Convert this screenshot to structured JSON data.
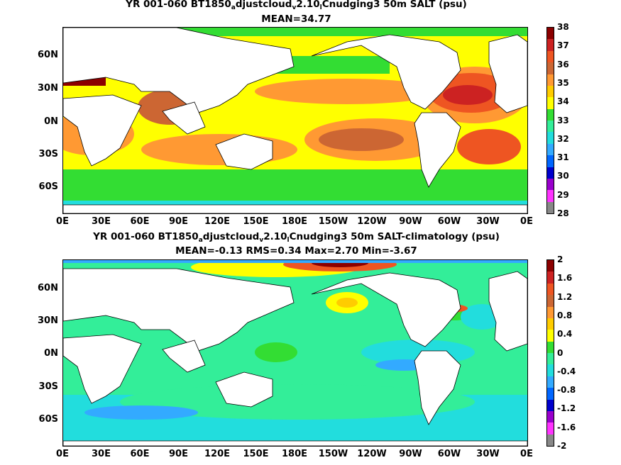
{
  "panel1": {
    "title_parts": [
      "YR 001-060 BT1850",
      "a",
      "djustcloud",
      "v",
      "2.10",
      "l",
      "Cnudging3 50m SALT (psu)"
    ],
    "stats": "MEAN=34.77",
    "colorbar_labels": [
      "38",
      "37",
      "36",
      "35",
      "34",
      "33",
      "32",
      "31",
      "30",
      "29",
      "28"
    ],
    "colors": [
      "#8b0000",
      "#cc2222",
      "#ee5522",
      "#cc6633",
      "#ff9933",
      "#ffcc00",
      "#ffff00",
      "#33dd33",
      "#33ee99",
      "#22dddd",
      "#33aaff",
      "#0066ff",
      "#0000cc",
      "#9900cc",
      "#ff33ff",
      "#888888"
    ]
  },
  "panel2": {
    "title_parts": [
      "YR 001-060 BT1850",
      "a",
      "djustcloud",
      "v",
      "2.10",
      "l",
      "Cnudging3 50m SALT-climatology (psu)"
    ],
    "stats": "MEAN=-0.13   RMS=0.34   Max=2.70   Min=-3.67",
    "colorbar_labels": [
      "2",
      "1.6",
      "1.2",
      "0.8",
      "0.4",
      "0",
      "-0.4",
      "-0.8",
      "-1.2",
      "-1.6",
      "-2"
    ],
    "colors": [
      "#8b0000",
      "#cc2222",
      "#ee5522",
      "#cc6633",
      "#ff9933",
      "#ffcc00",
      "#ffff00",
      "#33dd33",
      "#33ee99",
      "#22dddd",
      "#33aaff",
      "#0066ff",
      "#0000cc",
      "#9900cc",
      "#ff33ff",
      "#888888"
    ]
  },
  "axes": {
    "lat_labels": [
      "60N",
      "30N",
      "0N",
      "30S",
      "60S"
    ],
    "lon_labels": [
      "0E",
      "30E",
      "60E",
      "90E",
      "120E",
      "150E",
      "180E",
      "150W",
      "120W",
      "90W",
      "60W",
      "30W",
      "0E"
    ]
  }
}
